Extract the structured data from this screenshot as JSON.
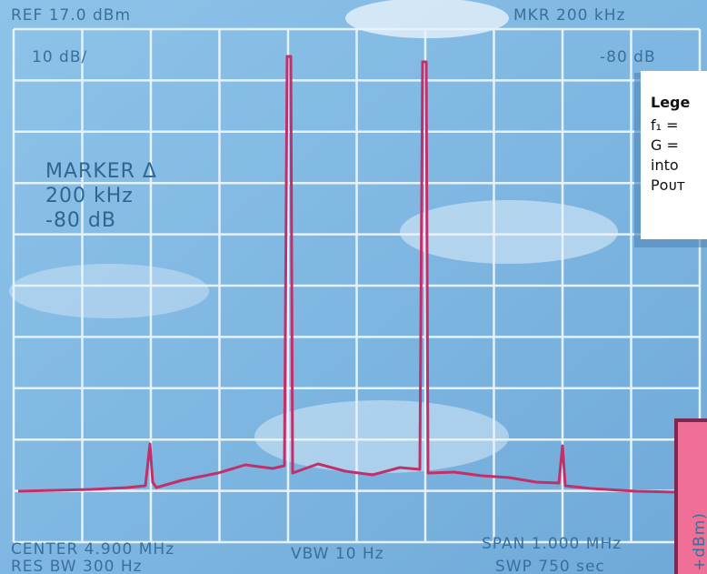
{
  "header": {
    "left": "REF 17.0 dBm",
    "right": "MKR  200 kHz"
  },
  "scale": {
    "left": "10 dB/",
    "right": "-80 dB"
  },
  "marker": {
    "title": "MARKER Δ",
    "freq": "200 kHz",
    "level": "-80 dB"
  },
  "legend": {
    "title": "Lege",
    "lines": [
      "f₁ =",
      "G =",
      "into",
      "Pᴏᴜᴛ"
    ]
  },
  "footer": {
    "center": "CENTER 4.900 MHz",
    "vbw": "VBW 10 Hz",
    "span": "SPAN 1.000 MHz",
    "resbw": "RES BW 300 Hz",
    "swp": "SWP 750 sec"
  },
  "side_label": "+dBm)"
}
